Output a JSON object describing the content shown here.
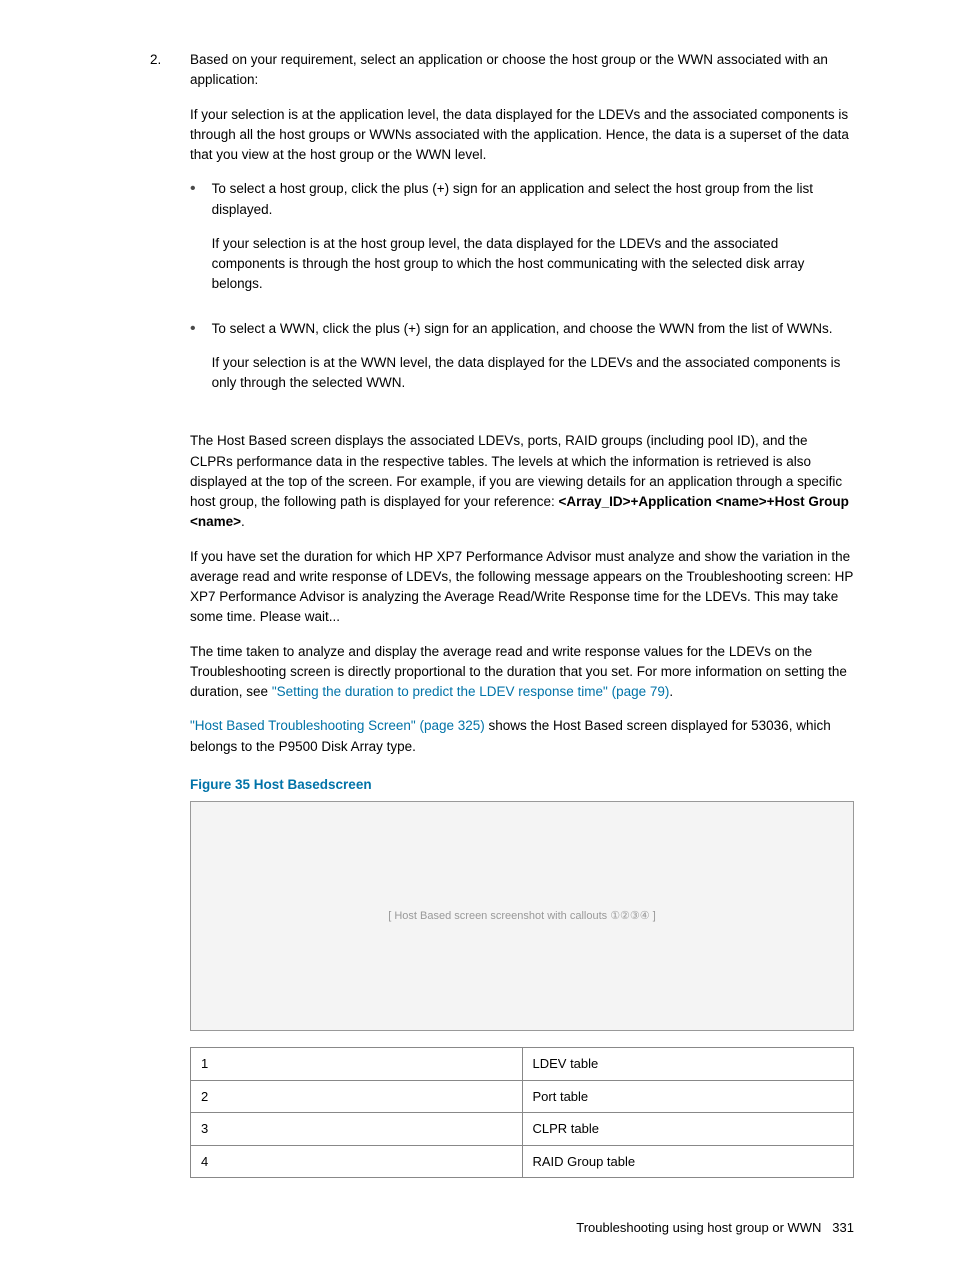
{
  "step": {
    "num": "2.",
    "intro": "Based on your requirement, select an application or choose the host group or the WWN associated with an application:",
    "para_app_level": "If your selection is at the application level, the data displayed for the LDEVs and the associated components is through all the host groups or WWNs associated with the application. Hence, the data is a superset of the data that you view at the host group or the WWN level.",
    "bullet_hostgroup": "To select a host group, click the plus (+) sign for an application and select the host group from the list displayed.",
    "para_hostgroup_level": "If your selection is at the host group level, the data displayed for the LDEVs and the associated components is through the host group to which the host communicating with the selected disk array belongs.",
    "bullet_wwn": "To select a WWN, click the plus (+) sign for an application, and choose the WWN from the list of WWNs.",
    "para_wwn_level": "If your selection is at the WWN level, the data displayed for the LDEVs and the associated components is only through the selected WWN."
  },
  "body": {
    "hostbased_intro_pre": "The Host Based screen displays the associated LDEVs, ports, RAID groups (including pool ID), and the CLPRs performance data in the respective tables. The levels at which the information is retrieved is also displayed at the top of the screen. For example, if you are viewing details for an application through a specific host group, the following path is displayed for your reference: ",
    "hostbased_intro_bold": "<Array_ID>+Application <name>+Host Group <name>",
    "hostbased_intro_suffix": ".",
    "duration_para": "If you have set the duration for which HP XP7 Performance Advisor must analyze and show the variation in the average read and write response of LDEVs, the following message appears on the Troubleshooting screen: HP XP7 Performance Advisor is analyzing the Average Read/Write Response time for the LDEVs. This may take some time. Please wait...",
    "time_taken_pre": "The time taken to analyze and display the average read and write response values for the LDEVs on the Troubleshooting screen is directly proportional to the duration that you set. For more information on setting the duration, see ",
    "time_taken_link": "\"Setting the duration to predict the LDEV response time\" (page 79)",
    "time_taken_suffix": ".",
    "ref_link": "\"Host Based Troubleshooting Screen\" (page 325)",
    "ref_text": " shows the Host Based screen displayed for 53036, which belongs to the P9500 Disk Array type."
  },
  "figure": {
    "caption": "Figure 35 Host Basedscreen",
    "placeholder": "[ Host Based screen screenshot with callouts ①②③④ ]"
  },
  "legend": {
    "r1": {
      "n": "1",
      "t": "LDEV table"
    },
    "r2": {
      "n": "2",
      "t": "Port table"
    },
    "r3": {
      "n": "3",
      "t": "CLPR table"
    },
    "r4": {
      "n": "4",
      "t": "RAID Group table"
    }
  },
  "footer": {
    "text": "Troubleshooting using host group or WWN",
    "page": "331"
  }
}
